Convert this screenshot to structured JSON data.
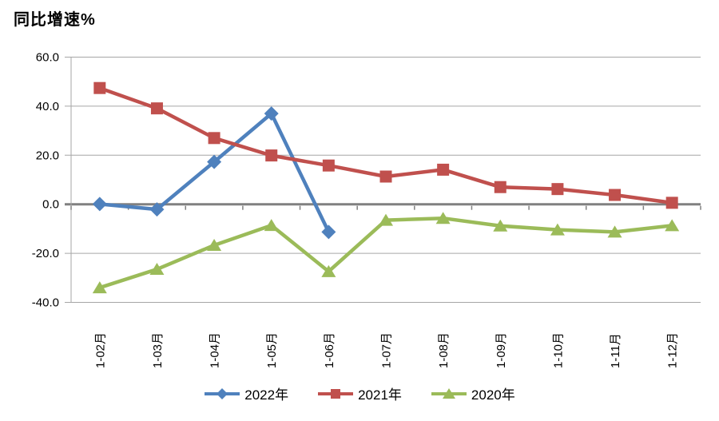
{
  "chart_data": {
    "type": "line",
    "title": "同比增速%",
    "categories": [
      "1-02月",
      "1-03月",
      "1-04月",
      "1-05月",
      "1-06月",
      "1-07月",
      "1-08月",
      "1-09月",
      "1-10月",
      "1-11月",
      "1-12月"
    ],
    "series": [
      {
        "name": "2022年",
        "color": "#4F81BD",
        "marker": "diamond",
        "values": [
          0.1,
          -2.1,
          17.3,
          37.0,
          -11.3,
          null,
          null,
          null,
          null,
          null,
          null
        ]
      },
      {
        "name": "2021年",
        "color": "#C0504D",
        "marker": "square",
        "values": [
          47.4,
          39.1,
          27.0,
          19.9,
          15.8,
          11.3,
          14.1,
          7.0,
          6.2,
          3.8,
          0.6
        ]
      },
      {
        "name": "2020年",
        "color": "#9BBB59",
        "marker": "triangle",
        "values": [
          -34.0,
          -26.5,
          -16.7,
          -8.6,
          -27.4,
          -6.5,
          -5.7,
          -8.8,
          -10.4,
          -11.3,
          -8.7
        ]
      }
    ],
    "ylim": [
      -40,
      60
    ],
    "ytick_step": 20,
    "y_tick_labels": [
      "60.0",
      "40.0",
      "20.0",
      "0.0",
      "-20.0",
      "-40.0"
    ],
    "grid": true,
    "legend_position": "bottom",
    "colors": {
      "gridline": "#A6A6A6",
      "zero_line": "#808080",
      "axis_line": "#A6A6A6",
      "tick": "#808080",
      "text": "#000000",
      "background": "#FFFFFF"
    }
  }
}
